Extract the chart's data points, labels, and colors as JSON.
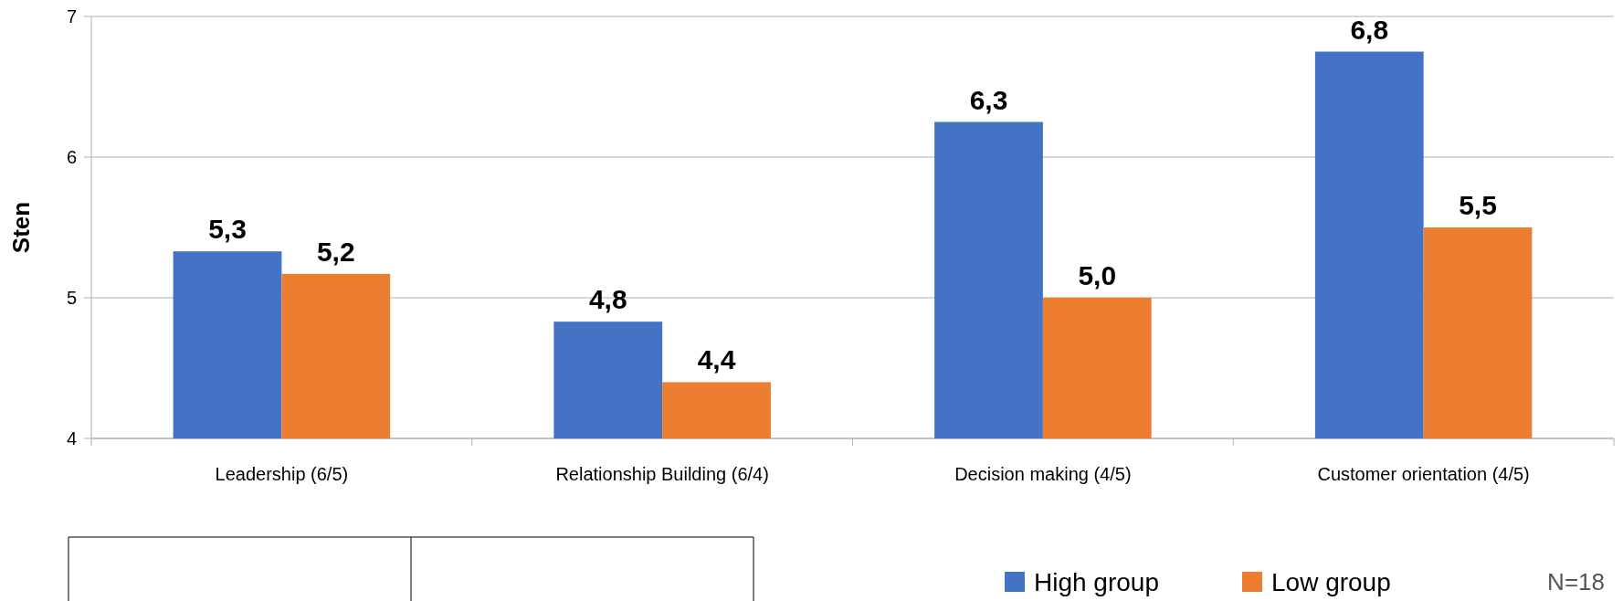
{
  "chart_data": {
    "type": "bar",
    "ylabel": "Sten",
    "categories": [
      "Leadership (6/5)",
      "Relationship Building (6/4)",
      "Decision making (4/5)",
      "Customer orientation (4/5)"
    ],
    "series": [
      {
        "name": "High group",
        "color": "#4472c4",
        "values": [
          5.33,
          4.83,
          6.25,
          6.75
        ],
        "value_labels": [
          "5,3",
          "4,8",
          "6,3",
          "6,8"
        ]
      },
      {
        "name": "Low group",
        "color": "#ed7d31",
        "values": [
          5.17,
          4.4,
          5.0,
          5.5
        ],
        "value_labels": [
          "5,2",
          "4,4",
          "5,0",
          "5,5"
        ]
      }
    ],
    "ylim": [
      4,
      7
    ],
    "yticks": [
      4,
      5,
      6,
      7
    ],
    "grid": "y",
    "legend": "bottom right",
    "annotations": [
      "N=18"
    ]
  }
}
